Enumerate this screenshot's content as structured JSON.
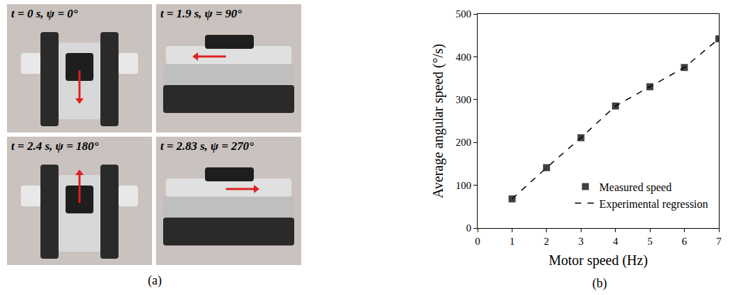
{
  "photo_panel": {
    "label": "(a)",
    "frames": [
      {
        "caption": "t = 0 s, ψ = 0°"
      },
      {
        "caption": "t = 1.9 s, ψ = 90°"
      },
      {
        "caption": "t = 2.4 s, ψ = 180°"
      },
      {
        "caption": "t = 2.83 s, ψ = 270°"
      }
    ]
  },
  "chart_data": {
    "type": "scatter",
    "panel_label": "(b)",
    "x_label": "Motor speed (Hz)",
    "y_label": "Average angular speed (°/s)",
    "x": [
      1,
      2,
      3,
      4,
      5,
      6,
      7
    ],
    "series": [
      {
        "name": "Measured speed",
        "type": "scatter",
        "marker": "square",
        "color": "#404040",
        "values": [
          68,
          141,
          211,
          285,
          330,
          375,
          442
        ]
      },
      {
        "name": "Experimental regression",
        "type": "line",
        "line_style": "dash",
        "color": "#000000",
        "values": [
          68,
          141,
          211,
          285,
          330,
          375,
          442
        ]
      }
    ],
    "xlim": [
      0,
      7
    ],
    "xticks": [
      0,
      1,
      2,
      3,
      4,
      5,
      6,
      7
    ],
    "ylim": [
      0,
      500
    ],
    "yticks": [
      0,
      100,
      200,
      300,
      400,
      500
    ],
    "grid": false,
    "legend": "lower right"
  }
}
